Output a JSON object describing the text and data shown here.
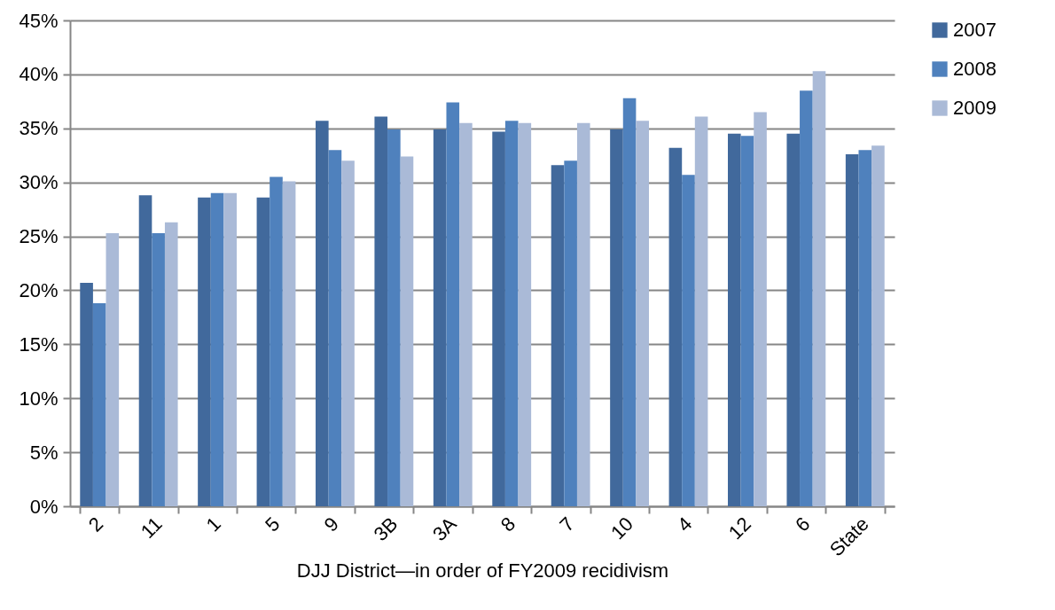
{
  "chart_data": {
    "type": "bar",
    "xlabel": "DJJ District—in order of FY2009 recidivism",
    "categories": [
      "2",
      "11",
      "1",
      "5",
      "9",
      "3B",
      "3A",
      "8",
      "7",
      "10",
      "4",
      "12",
      "6",
      "State"
    ],
    "series": [
      {
        "name": "2007",
        "color": "#41699c",
        "values": [
          20.7,
          28.8,
          28.6,
          28.6,
          35.7,
          36.1,
          34.9,
          34.7,
          31.6,
          34.9,
          33.2,
          34.5,
          34.5,
          32.6
        ]
      },
      {
        "name": "2008",
        "color": "#4f81bd",
        "values": [
          18.8,
          25.3,
          29.0,
          30.5,
          33.0,
          34.9,
          37.4,
          35.7,
          32.0,
          37.8,
          30.7,
          34.3,
          38.5,
          33.0
        ]
      },
      {
        "name": "2009",
        "color": "#aabad7",
        "values": [
          25.3,
          26.3,
          29.0,
          30.1,
          32.0,
          32.4,
          35.5,
          35.5,
          35.5,
          35.7,
          36.1,
          36.5,
          40.3,
          33.4
        ]
      }
    ],
    "ylim": [
      0,
      45
    ],
    "yticks": [
      {
        "value": 0,
        "label": "0%"
      },
      {
        "value": 5,
        "label": "5%"
      },
      {
        "value": 10,
        "label": "10%"
      },
      {
        "value": 15,
        "label": "15%"
      },
      {
        "value": 20,
        "label": "20%"
      },
      {
        "value": 25,
        "label": "25%"
      },
      {
        "value": 30,
        "label": "30%"
      },
      {
        "value": 35,
        "label": "35%"
      },
      {
        "value": 40,
        "label": "40%"
      },
      {
        "value": 45,
        "label": "45%"
      }
    ],
    "grid": "y",
    "legend": "right"
  }
}
